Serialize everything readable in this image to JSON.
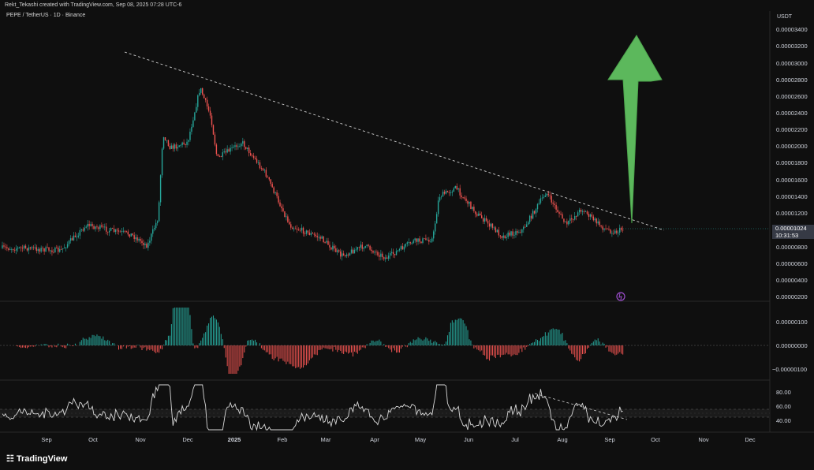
{
  "header": {
    "attribution": "Rekt_Tekashi created with TradingView.com, Sep 08, 2025 07:28 UTC-6",
    "symbol_line": "PEPE / TetherUS · 1D · Binance"
  },
  "price_axis": {
    "currency": "USDT",
    "labels": [
      "0.00003400",
      "0.00003200",
      "0.00003000",
      "0.00002800",
      "0.00002600",
      "0.00002400",
      "0.00002200",
      "0.00002000",
      "0.00001800",
      "0.00001600",
      "0.00001400",
      "0.00001200",
      "0.00000800",
      "0.00000600",
      "0.00000400",
      "0.00000200"
    ]
  },
  "last_price": {
    "value": "0.00001024",
    "countdown": "10:31:53"
  },
  "macd_axis": {
    "labels": [
      "0.00000100",
      "0.00000000",
      "−0.00000100"
    ]
  },
  "rsi_axis": {
    "labels": [
      "80.00",
      "60.00",
      "40.00"
    ]
  },
  "time_axis": {
    "labels": [
      "Sep",
      "Oct",
      "Nov",
      "Dec",
      "2025",
      "Feb",
      "Mar",
      "Apr",
      "May",
      "Jun",
      "Jul",
      "Aug",
      "Sep",
      "Oct",
      "Nov",
      "Dec"
    ]
  },
  "brand": {
    "name": "TradingView"
  },
  "colors": {
    "up": "#26a69a",
    "down": "#ef5350",
    "arrow": "#5cb85c",
    "background": "#0f0f0f"
  },
  "chart_data": {
    "type": "candlestick",
    "price_keypoints": [
      {
        "date": "2024-08-20",
        "price": 7.8e-06
      },
      {
        "date": "2024-09-10",
        "price": 7.5e-06
      },
      {
        "date": "2024-09-27",
        "price": 1.06e-05
      },
      {
        "date": "2024-10-15",
        "price": 9.8e-06
      },
      {
        "date": "2024-10-25",
        "price": 9.5e-06
      },
      {
        "date": "2024-11-05",
        "price": 8.1e-06
      },
      {
        "date": "2024-11-12",
        "price": 1.15e-05
      },
      {
        "date": "2024-11-15",
        "price": 2.15e-05
      },
      {
        "date": "2024-11-20",
        "price": 1.98e-05
      },
      {
        "date": "2024-12-01",
        "price": 2.05e-05
      },
      {
        "date": "2024-12-09",
        "price": 2.7e-05
      },
      {
        "date": "2024-12-16",
        "price": 2.35e-05
      },
      {
        "date": "2024-12-20",
        "price": 1.85e-05
      },
      {
        "date": "2025-01-05",
        "price": 2.05e-05
      },
      {
        "date": "2025-01-20",
        "price": 1.68e-05
      },
      {
        "date": "2025-02-05",
        "price": 1.05e-05
      },
      {
        "date": "2025-02-25",
        "price": 9e-06
      },
      {
        "date": "2025-03-10",
        "price": 6.9e-06
      },
      {
        "date": "2025-03-25",
        "price": 8.1e-06
      },
      {
        "date": "2025-04-08",
        "price": 6.6e-06
      },
      {
        "date": "2025-04-25",
        "price": 8.6e-06
      },
      {
        "date": "2025-05-08",
        "price": 8.9e-06
      },
      {
        "date": "2025-05-12",
        "price": 1.4e-05
      },
      {
        "date": "2025-05-23",
        "price": 1.5e-05
      },
      {
        "date": "2025-06-05",
        "price": 1.2e-05
      },
      {
        "date": "2025-06-22",
        "price": 9.2e-06
      },
      {
        "date": "2025-07-05",
        "price": 1e-05
      },
      {
        "date": "2025-07-20",
        "price": 1.45e-05
      },
      {
        "date": "2025-08-02",
        "price": 1.06e-05
      },
      {
        "date": "2025-08-12",
        "price": 1.25e-05
      },
      {
        "date": "2025-08-26",
        "price": 1.02e-05
      },
      {
        "date": "2025-09-03",
        "price": 9.7e-06
      },
      {
        "date": "2025-09-08",
        "price": 1.02e-05
      }
    ],
    "trendline": {
      "start": {
        "date": "2024-11-01",
        "price": 3.16e-05
      },
      "end": {
        "date": "2025-10-05",
        "price": 9.8e-06
      }
    },
    "annotation": "up-arrow",
    "macd": {
      "zero": 0,
      "peak": 1.05e-06,
      "trough": -6e-07
    },
    "rsi": {
      "levels": [
        70,
        50,
        30
      ],
      "ylim": [
        20,
        95
      ]
    }
  }
}
